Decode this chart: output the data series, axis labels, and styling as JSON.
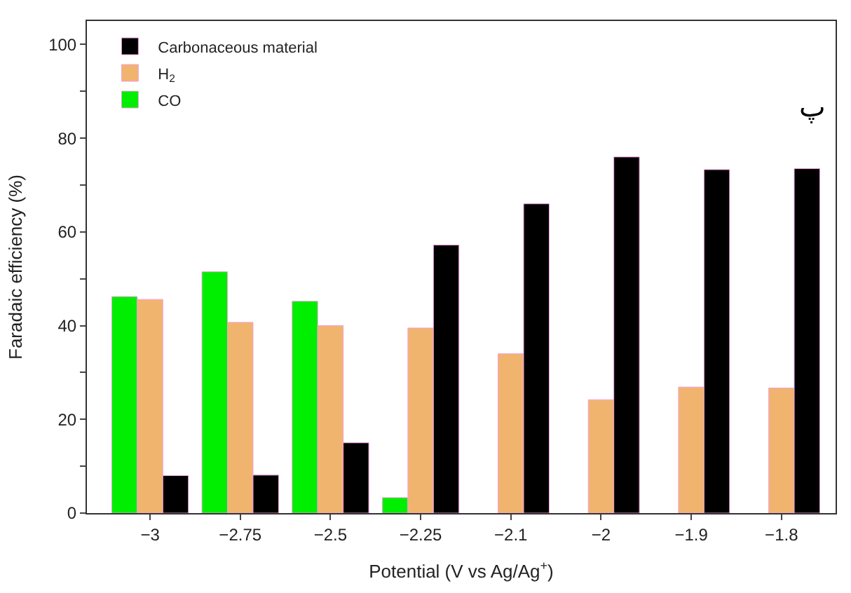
{
  "chart_data": {
    "type": "bar",
    "xlabel": "Potential (V vs Ag/Ag$^{+}$)",
    "ylabel": "Faradaic efficiency (%)",
    "categories": [
      "−3",
      "−2.75",
      "−2.5",
      "−2.25",
      "−2.1",
      "−2",
      "−1.9",
      "−1.8"
    ],
    "series": [
      {
        "name": "CO",
        "color": "#00ee00",
        "values": [
          46.2,
          51.5,
          45.2,
          3.3,
          null,
          null,
          null,
          null
        ]
      },
      {
        "name": "H$_{2}$",
        "color": "#f0b46e",
        "values": [
          45.6,
          40.7,
          40.0,
          39.5,
          34.0,
          24.2,
          26.9,
          26.7
        ]
      },
      {
        "name": "Carbonaceous material",
        "color": "#000000",
        "values": [
          8.0,
          8.1,
          15.0,
          57.2,
          66.0,
          76.0,
          73.3,
          73.5
        ]
      }
    ],
    "ylim": [
      0,
      105
    ],
    "yticks": [
      0,
      {
        "value": 10,
        "label": null
      },
      20,
      {
        "value": 30,
        "label": null
      },
      40,
      {
        "value": 50,
        "label": null
      },
      60,
      {
        "value": 70,
        "label": null
      },
      80,
      {
        "value": 90,
        "label": null
      },
      100
    ],
    "legend": "top left",
    "annotations": [
      "پ"
    ]
  }
}
